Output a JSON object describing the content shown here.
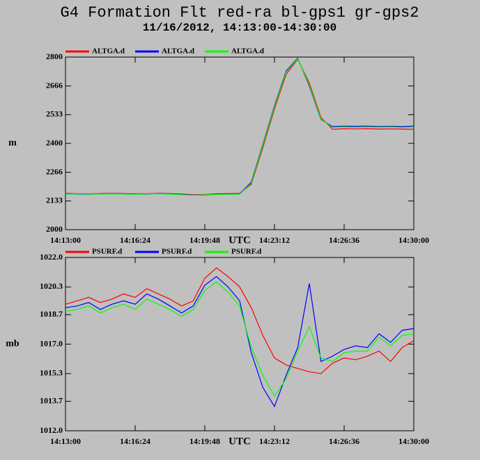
{
  "header": {
    "title": "G4 Formation Flt red-ra bl-gps1 gr-gps2",
    "subtitle": "11/16/2012, 14:13:00-14:30:00"
  },
  "chart_data": [
    {
      "type": "line",
      "xlabel": "UTC",
      "ylabel": "m",
      "x": [
        "14:13:00",
        "14:13:34",
        "14:14:08",
        "14:14:42",
        "14:15:16",
        "14:15:50",
        "14:16:24",
        "14:16:58",
        "14:17:32",
        "14:18:06",
        "14:18:40",
        "14:19:14",
        "14:19:48",
        "14:20:22",
        "14:20:56",
        "14:21:30",
        "14:22:04",
        "14:22:38",
        "14:23:12",
        "14:23:46",
        "14:24:20",
        "14:24:54",
        "14:25:28",
        "14:26:02",
        "14:26:36",
        "14:27:10",
        "14:27:44",
        "14:28:18",
        "14:28:52",
        "14:29:26",
        "14:30:00"
      ],
      "xlim": [
        "14:13:00",
        "14:30:00"
      ],
      "xticks": [
        "14:13:00",
        "14:16:24",
        "14:19:48",
        "14:23:12",
        "14:26:36",
        "14:30:00"
      ],
      "ylim": [
        2000,
        2800
      ],
      "yticks": [
        2000,
        2133,
        2266,
        2400,
        2533,
        2666,
        2800
      ],
      "series": [
        {
          "name": "ALTGA.d",
          "color": "#ff0000",
          "values": [
            2168,
            2167,
            2166,
            2167,
            2168,
            2167,
            2166,
            2167,
            2168,
            2167,
            2165,
            2162,
            2163,
            2166,
            2167,
            2168,
            2210,
            2380,
            2560,
            2720,
            2790,
            2680,
            2520,
            2465,
            2468,
            2467,
            2468,
            2466,
            2467,
            2466,
            2465
          ]
        },
        {
          "name": "ALTGA.d",
          "color": "#0000ff",
          "values": [
            2166,
            2165,
            2164,
            2166,
            2167,
            2166,
            2165,
            2165,
            2167,
            2166,
            2163,
            2160,
            2161,
            2164,
            2165,
            2166,
            2220,
            2395,
            2575,
            2735,
            2795,
            2665,
            2510,
            2478,
            2480,
            2479,
            2480,
            2478,
            2479,
            2478,
            2480
          ]
        },
        {
          "name": "ALTGA.d",
          "color": "#00ff00",
          "values": [
            2165,
            2166,
            2165,
            2165,
            2166,
            2165,
            2164,
            2166,
            2166,
            2165,
            2162,
            2159,
            2162,
            2163,
            2164,
            2165,
            2215,
            2390,
            2570,
            2730,
            2793,
            2670,
            2512,
            2474,
            2476,
            2475,
            2476,
            2475,
            2476,
            2474,
            2475
          ]
        }
      ]
    },
    {
      "type": "line",
      "xlabel": "UTC",
      "ylabel": "mb",
      "x": [
        "14:13:00",
        "14:13:34",
        "14:14:08",
        "14:14:42",
        "14:15:16",
        "14:15:50",
        "14:16:24",
        "14:16:58",
        "14:17:32",
        "14:18:06",
        "14:18:40",
        "14:19:14",
        "14:19:48",
        "14:20:22",
        "14:20:56",
        "14:21:30",
        "14:22:04",
        "14:22:38",
        "14:23:12",
        "14:23:46",
        "14:24:20",
        "14:24:54",
        "14:25:28",
        "14:26:02",
        "14:26:36",
        "14:27:10",
        "14:27:44",
        "14:28:18",
        "14:28:52",
        "14:29:26",
        "14:30:00"
      ],
      "xlim": [
        "14:13:00",
        "14:30:00"
      ],
      "xticks": [
        "14:13:00",
        "14:16:24",
        "14:19:48",
        "14:23:12",
        "14:26:36",
        "14:30:00"
      ],
      "ylim": [
        1012,
        1022
      ],
      "yticks": [
        {
          "value": 1012,
          "label": "1012.0"
        },
        1013.7,
        1015.3,
        {
          "value": 1017,
          "label": "1017.0"
        },
        1018.7,
        1020.3,
        {
          "value": 1022,
          "label": "1022.0"
        }
      ],
      "series": [
        {
          "name": "PSURF.d",
          "color": "#ff0000",
          "values": [
            1019.3,
            1019.5,
            1019.7,
            1019.4,
            1019.6,
            1019.9,
            1019.7,
            1020.2,
            1019.9,
            1019.6,
            1019.2,
            1019.5,
            1020.8,
            1021.4,
            1020.9,
            1020.3,
            1019.1,
            1017.5,
            1016.2,
            1015.8,
            1015.6,
            1015.4,
            1015.3,
            1015.9,
            1016.2,
            1016.1,
            1016.3,
            1016.6,
            1016.0,
            1016.8,
            1017.2
          ]
        },
        {
          "name": "PSURF.d",
          "color": "#0000ff",
          "values": [
            1019.1,
            1019.2,
            1019.4,
            1019.0,
            1019.3,
            1019.5,
            1019.3,
            1019.9,
            1019.6,
            1019.2,
            1018.8,
            1019.2,
            1020.4,
            1020.9,
            1020.3,
            1019.5,
            1016.5,
            1014.5,
            1013.4,
            1015.2,
            1016.8,
            1020.5,
            1016.0,
            1016.3,
            1016.7,
            1016.9,
            1016.8,
            1017.6,
            1017.1,
            1017.8,
            1017.9
          ]
        },
        {
          "name": "PSURF.d",
          "color": "#00ff00",
          "values": [
            1018.9,
            1019.0,
            1019.2,
            1018.8,
            1019.1,
            1019.3,
            1019.0,
            1019.6,
            1019.3,
            1019.0,
            1018.6,
            1019.0,
            1020.1,
            1020.6,
            1020.0,
            1019.2,
            1016.8,
            1015.2,
            1014.0,
            1015.0,
            1016.6,
            1018.0,
            1016.2,
            1016.0,
            1016.5,
            1016.6,
            1016.6,
            1017.4,
            1016.9,
            1017.5,
            1017.6
          ]
        }
      ]
    }
  ]
}
